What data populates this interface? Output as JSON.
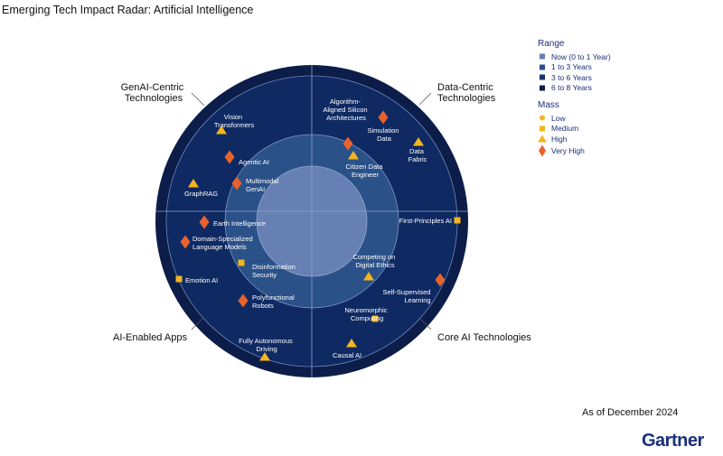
{
  "title": "Emerging Tech Impact Radar: Artificial Intelligence",
  "as_of": "As of December 2024",
  "logo": "Gartner",
  "colors": {
    "ring_outer": "#0d1d4a",
    "ring_3": "#0f2a63",
    "ring_2": "#2b5189",
    "ring_1": "#6680b4",
    "marker_orange": "#e8632b",
    "marker_yellow": "#f3b51f",
    "legend_text": "#1b2f7a"
  },
  "legend": {
    "range_title": "Range",
    "range_items": [
      {
        "label": "Now (0 to 1 Year)",
        "color": "#6680b4"
      },
      {
        "label": "1 to 3 Years",
        "color": "#2b5189"
      },
      {
        "label": "3 to 6 Years",
        "color": "#143472"
      },
      {
        "label": "6 to 8 Years",
        "color": "#0d1d4a"
      }
    ],
    "mass_title": "Mass",
    "mass_items": [
      {
        "label": "Low",
        "shape": "circle"
      },
      {
        "label": "Medium",
        "shape": "square"
      },
      {
        "label": "High",
        "shape": "triangle"
      },
      {
        "label": "Very High",
        "shape": "diamond"
      }
    ]
  },
  "sectors": [
    {
      "lines": [
        "GenAI-Centric",
        "Technologies"
      ]
    },
    {
      "lines": [
        "Data-Centric",
        "Technologies"
      ]
    },
    {
      "lines": [
        "AI-Enabled Apps"
      ]
    },
    {
      "lines": [
        "Core AI Technologies"
      ]
    }
  ],
  "technologies": [
    {
      "name": [
        "Vision",
        "Transformers"
      ],
      "mass": "triangle"
    },
    {
      "name": [
        "Agentic AI"
      ],
      "mass": "diamond"
    },
    {
      "name": [
        "Multimodal",
        "GenAI"
      ],
      "mass": "diamond"
    },
    {
      "name": [
        "GraphRAG"
      ],
      "mass": "triangle"
    },
    {
      "name": [
        "Earth Intelligence"
      ],
      "mass": "diamond"
    },
    {
      "name": [
        "Domain-Specialized",
        "Language Models"
      ],
      "mass": "diamond"
    },
    {
      "name": [
        "Algorithm-",
        "Aligned Silicon",
        "Architectures"
      ],
      "mass": "diamond"
    },
    {
      "name": [
        "Simulation",
        "Data"
      ],
      "mass": "diamond"
    },
    {
      "name": [
        "Citizen Data",
        "Engineer"
      ],
      "mass": "triangle"
    },
    {
      "name": [
        "Data",
        "Fabric"
      ],
      "mass": "triangle"
    },
    {
      "name": [
        "First-Principles AI"
      ],
      "mass": "square"
    },
    {
      "name": [
        "Disinformation",
        "Security"
      ],
      "mass": "square"
    },
    {
      "name": [
        "Emotion AI"
      ],
      "mass": "square"
    },
    {
      "name": [
        "Polyfunctional",
        "Robots"
      ],
      "mass": "diamond"
    },
    {
      "name": [
        "Fully Autonomous",
        "Driving"
      ],
      "mass": "triangle"
    },
    {
      "name": [
        "Competing on",
        "Digital Ethics"
      ],
      "mass": "triangle"
    },
    {
      "name": [
        "Self-Supervised",
        "Learning"
      ],
      "mass": "diamond"
    },
    {
      "name": [
        "Neuromorphic",
        "Computing"
      ],
      "mass": "square"
    },
    {
      "name": [
        "Causal AI"
      ],
      "mass": "triangle"
    }
  ]
}
